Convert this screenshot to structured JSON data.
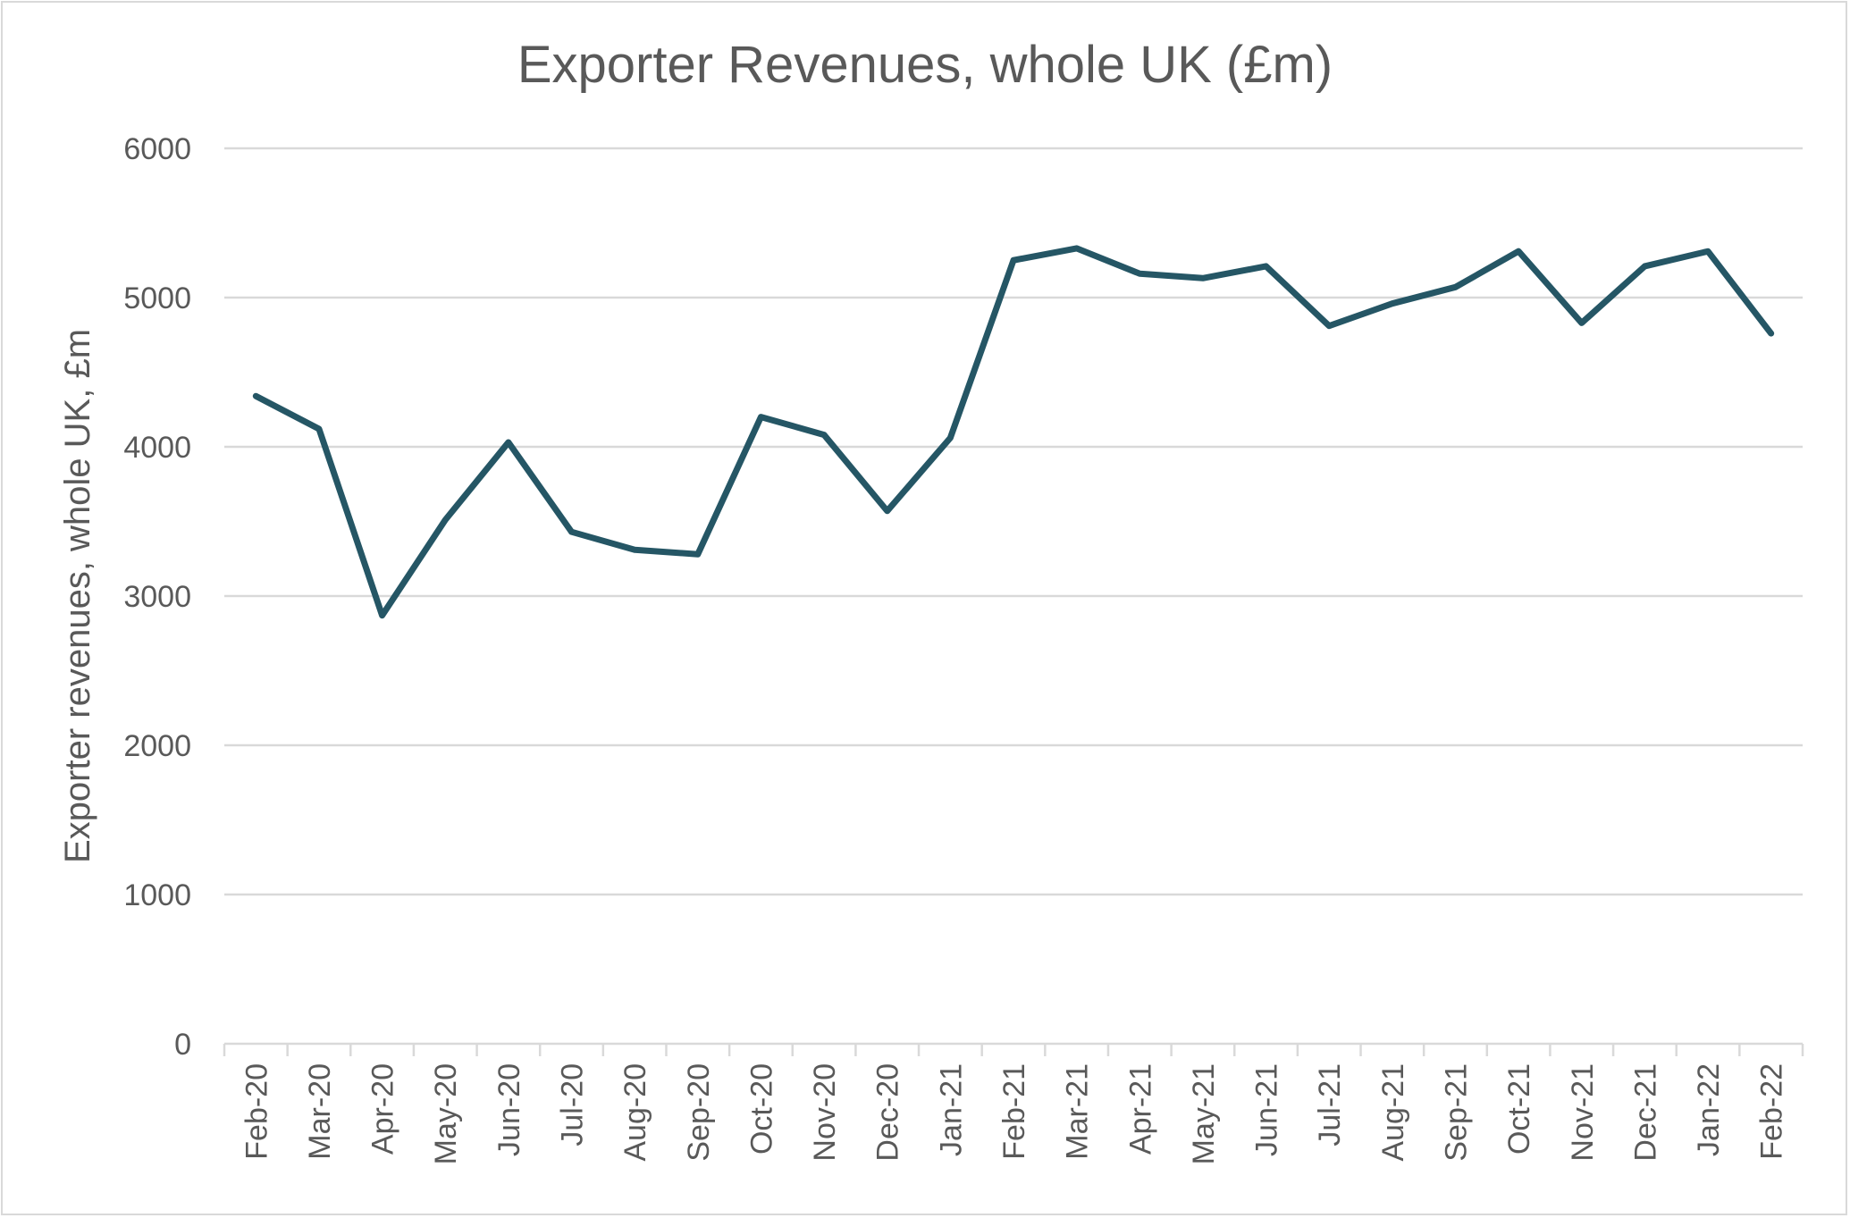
{
  "chart_data": {
    "type": "line",
    "title": "Exporter Revenues, whole UK (£m)",
    "xlabel": "",
    "ylabel": "Exporter revenues, whole UK, £m",
    "ylim": [
      0,
      6000
    ],
    "yticks": [
      0,
      1000,
      2000,
      3000,
      4000,
      5000,
      6000
    ],
    "grid": true,
    "legend": "none",
    "line_color": "#255665",
    "categories": [
      "Feb-20",
      "Mar-20",
      "Apr-20",
      "May-20",
      "Jun-20",
      "Jul-20",
      "Aug-20",
      "Sep-20",
      "Oct-20",
      "Nov-20",
      "Dec-20",
      "Jan-21",
      "Feb-21",
      "Mar-21",
      "Apr-21",
      "May-21",
      "Jun-21",
      "Jul-21",
      "Aug-21",
      "Sep-21",
      "Oct-21",
      "Nov-21",
      "Dec-21",
      "Jan-22",
      "Feb-22"
    ],
    "values": [
      4340,
      4120,
      2870,
      3510,
      4030,
      3430,
      3310,
      3280,
      4200,
      4080,
      3570,
      4060,
      5250,
      5330,
      5160,
      5130,
      5210,
      4810,
      4960,
      5070,
      5310,
      4830,
      5210,
      5310,
      4760
    ]
  }
}
